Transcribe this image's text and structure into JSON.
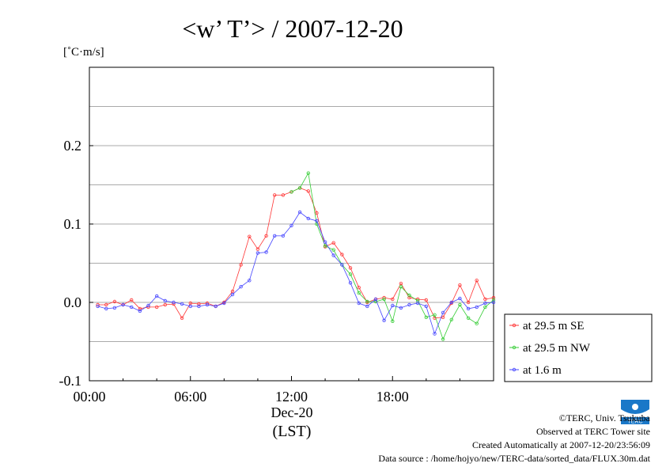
{
  "chart_data": {
    "type": "line",
    "title": "<w’ T’> / 2007-12-20",
    "ylabel": "[˚C·m/s]",
    "xlabel": "(LST)",
    "date_label": "Dec-20",
    "xlim": [
      0,
      24
    ],
    "ylim": [
      -0.1,
      0.3
    ],
    "xticks": [
      {
        "value": 0,
        "label": "00:00"
      },
      {
        "value": 6,
        "label": "06:00"
      },
      {
        "value": 12,
        "label": "12:00"
      },
      {
        "value": 18,
        "label": "18:00"
      }
    ],
    "yticks": [
      {
        "value": -0.1,
        "label": "-0.1"
      },
      {
        "value": 0.0,
        "label": "0.0"
      },
      {
        "value": 0.1,
        "label": "0.1"
      },
      {
        "value": 0.2,
        "label": "0.2"
      }
    ],
    "grid": true,
    "legend_position": "bottom-right, outside plot",
    "x": [
      0.5,
      1.0,
      1.5,
      2.0,
      2.5,
      3.0,
      3.5,
      4.0,
      4.5,
      5.0,
      5.5,
      6.0,
      6.5,
      7.0,
      7.5,
      8.0,
      8.5,
      9.0,
      9.5,
      10.0,
      10.5,
      11.0,
      11.5,
      12.0,
      12.5,
      13.0,
      13.5,
      14.0,
      14.5,
      15.0,
      15.5,
      16.0,
      16.5,
      17.0,
      17.5,
      18.0,
      18.5,
      19.0,
      19.5,
      20.0,
      20.5,
      21.0,
      21.5,
      22.0,
      22.5,
      23.0,
      23.5,
      24.0
    ],
    "series": [
      {
        "name": "at 29.5 m SE",
        "color": "#ff3333",
        "values": [
          -0.003,
          -0.003,
          0.001,
          -0.003,
          0.003,
          -0.008,
          -0.006,
          -0.006,
          -0.003,
          -0.002,
          -0.02,
          -0.001,
          -0.002,
          -0.001,
          -0.005,
          0.0,
          0.014,
          0.048,
          0.084,
          0.068,
          0.085,
          0.137,
          0.137,
          0.141,
          0.146,
          0.142,
          0.114,
          0.071,
          0.076,
          0.061,
          0.044,
          0.019,
          0.0,
          0.004,
          0.006,
          0.004,
          0.024,
          0.006,
          0.004,
          0.003,
          -0.02,
          -0.019,
          -0.001,
          0.022,
          0.0,
          0.028,
          0.004,
          0.006
        ]
      },
      {
        "name": "at 29.5 m NW",
        "color": "#33cc33",
        "values": [
          null,
          null,
          null,
          null,
          null,
          null,
          null,
          null,
          null,
          null,
          null,
          null,
          null,
          null,
          null,
          null,
          null,
          null,
          null,
          null,
          null,
          null,
          null,
          0.141,
          0.146,
          0.165,
          0.1,
          0.072,
          0.067,
          0.048,
          0.036,
          0.012,
          0.001,
          0.001,
          0.004,
          -0.024,
          0.02,
          0.009,
          0.002,
          -0.019,
          -0.016,
          -0.047,
          -0.022,
          -0.003,
          -0.02,
          -0.027,
          -0.006,
          0.003
        ]
      },
      {
        "name": "at 1.6 m",
        "color": "#4444ff",
        "values": [
          -0.005,
          -0.008,
          -0.007,
          -0.003,
          -0.006,
          -0.011,
          -0.004,
          0.008,
          0.002,
          0.0,
          -0.002,
          -0.005,
          -0.005,
          -0.003,
          -0.005,
          -0.001,
          0.01,
          0.02,
          0.028,
          0.063,
          0.064,
          0.085,
          0.085,
          0.098,
          0.115,
          0.107,
          0.104,
          0.077,
          0.06,
          0.048,
          0.025,
          -0.001,
          -0.005,
          0.004,
          -0.023,
          -0.004,
          -0.007,
          -0.003,
          -0.001,
          -0.005,
          -0.04,
          -0.013,
          0.0,
          0.005,
          -0.008,
          -0.006,
          -0.001,
          0.0
        ]
      }
    ]
  },
  "credits": {
    "copyright": "©TERC, Univ. Tsukuba",
    "observed": "Observed at TERC Tower site",
    "created": "Created Automatically at 2007-12-20/23:56:09",
    "source": "Data source : /home/hojyo/new/TERC-data/sorted_data/FLUX.30m.dat"
  },
  "logo": {
    "text": "TERC"
  }
}
